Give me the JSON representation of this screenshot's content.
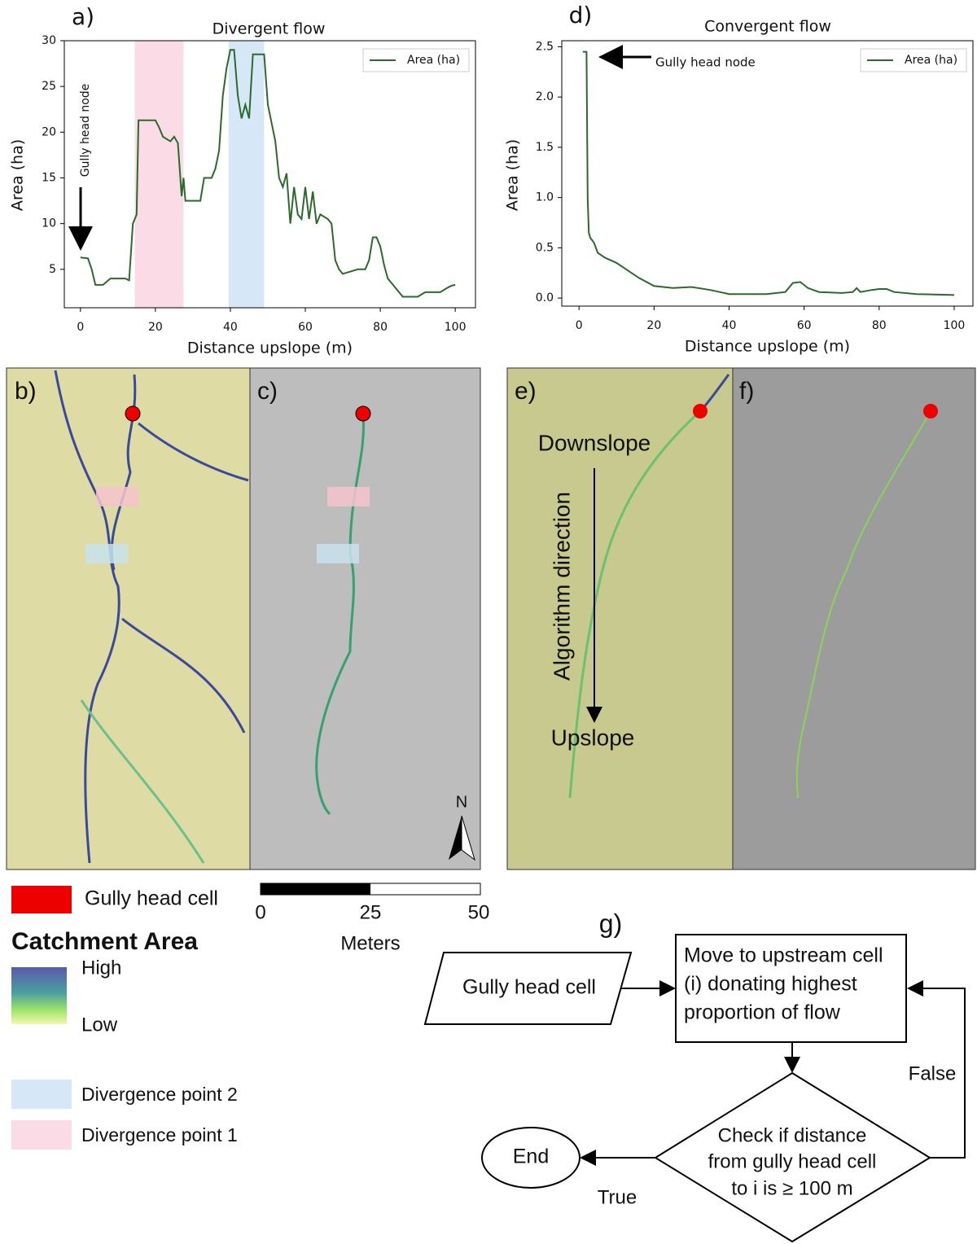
{
  "chart_data": [
    {
      "type": "line",
      "panel": "a)",
      "title": "Divergent flow",
      "x_label": "Distance upslope (m)",
      "y_label": "Area (ha)",
      "x": [
        0,
        2,
        3,
        4,
        6,
        8,
        12,
        13,
        14,
        15,
        15.5,
        20,
        21,
        22,
        24,
        25,
        26,
        27,
        27.5,
        28,
        32,
        33,
        35,
        36,
        37,
        38,
        39,
        40,
        41,
        42,
        43,
        44,
        45,
        46,
        49,
        50,
        52,
        53,
        54,
        55,
        56,
        57,
        58,
        59,
        60,
        61,
        62,
        63,
        64,
        66,
        67,
        68,
        69,
        70,
        74,
        76,
        77,
        78,
        79,
        80,
        81,
        82,
        84,
        86,
        90,
        92,
        96,
        98,
        99,
        100
      ],
      "series": [
        {
          "name": "Area (ha)",
          "color": "#2b6a2b",
          "values": [
            6.3,
            6.2,
            5,
            3.3,
            3.3,
            4,
            4,
            3.8,
            10,
            11,
            21.3,
            21.3,
            20.5,
            19.5,
            19,
            19.5,
            18.8,
            13,
            15,
            12.5,
            12.5,
            15,
            15,
            16,
            18,
            24,
            27,
            29,
            29,
            24,
            21.5,
            23,
            21.5,
            28.5,
            28.5,
            23,
            19,
            15,
            14,
            15.5,
            10,
            14,
            11,
            10.5,
            14,
            10.5,
            13.5,
            10,
            11,
            10.5,
            10,
            6,
            5,
            4.5,
            5,
            5,
            6,
            8.5,
            8.5,
            7.5,
            5.5,
            4,
            3,
            2,
            2,
            2.5,
            2.5,
            3,
            3.2,
            3.3
          ]
        }
      ],
      "xlim": [
        -4.3,
        105.4
      ],
      "ylim": [
        0.8,
        30
      ],
      "xticks": [
        0,
        20,
        40,
        60,
        80,
        100
      ],
      "yticks": [
        5,
        10,
        15,
        20,
        25,
        30
      ],
      "legend": "upper right",
      "shaded_regions": [
        {
          "x": [
            14.5,
            27.5
          ],
          "color": "#fadbe6"
        },
        {
          "x": [
            39.5,
            49
          ],
          "color": "#d6e8f8"
        }
      ],
      "annotation": "Gully head node"
    },
    {
      "type": "line",
      "panel": "d)",
      "title": "Convergent flow",
      "x_label": "Distance upslope (m)",
      "y_label": "Area (ha)",
      "x": [
        1,
        2,
        2.3,
        2.6,
        3,
        4,
        5,
        7,
        10,
        12,
        14,
        16,
        20,
        25,
        30,
        35,
        40,
        50,
        55,
        57,
        59,
        61,
        64,
        70,
        73,
        74,
        75,
        78,
        80,
        82,
        84,
        90,
        100
      ],
      "series": [
        {
          "name": "Area (ha)",
          "color": "#2b6a2b",
          "values": [
            2.45,
            2.45,
            1.0,
            0.65,
            0.6,
            0.55,
            0.45,
            0.4,
            0.35,
            0.3,
            0.25,
            0.2,
            0.12,
            0.1,
            0.11,
            0.08,
            0.04,
            0.04,
            0.06,
            0.15,
            0.16,
            0.1,
            0.06,
            0.05,
            0.06,
            0.1,
            0.06,
            0.08,
            0.09,
            0.09,
            0.06,
            0.04,
            0.03
          ]
        }
      ],
      "xlim": [
        -4.6,
        105
      ],
      "ylim": [
        -0.08,
        2.56
      ],
      "xticks": [
        0,
        20,
        40,
        60,
        80,
        100
      ],
      "yticks": [
        {
          "value": 0,
          "label": "0.0"
        },
        0.5,
        {
          "value": 1,
          "label": "1.0"
        },
        1.5,
        {
          "value": 2,
          "label": "2.0"
        },
        2.5
      ],
      "legend": "upper right",
      "annotation": "Gully head node"
    }
  ],
  "maps": {
    "panels": [
      "b)",
      "c)",
      "e)",
      "f)"
    ],
    "downslope": "Downslope",
    "direction": "Algorithm direction",
    "upslope": "Upslope",
    "north": "N"
  },
  "scale_bar": {
    "ticks": [
      "0",
      "25",
      "50"
    ],
    "unit": "Meters"
  },
  "legend": {
    "gully_head": "Gully head cell",
    "title": "Catchment Area",
    "high": "High",
    "low": "Low",
    "divergence_2": "Divergence point 2",
    "divergence_1": "Divergence point 1"
  },
  "flowchart": {
    "label": "g)",
    "nodes": [
      {
        "lines": [
          "Gully head cell"
        ]
      },
      {
        "lines": [
          "Move to upstream cell",
          "(i) donating highest",
          "proportion of flow"
        ]
      },
      {
        "lines": [
          "Check if distance",
          "from gully head cell",
          "to i is ≥ 100 m"
        ]
      },
      {
        "lines": [
          "End"
        ]
      }
    ],
    "edges": [
      "False",
      "True"
    ]
  }
}
